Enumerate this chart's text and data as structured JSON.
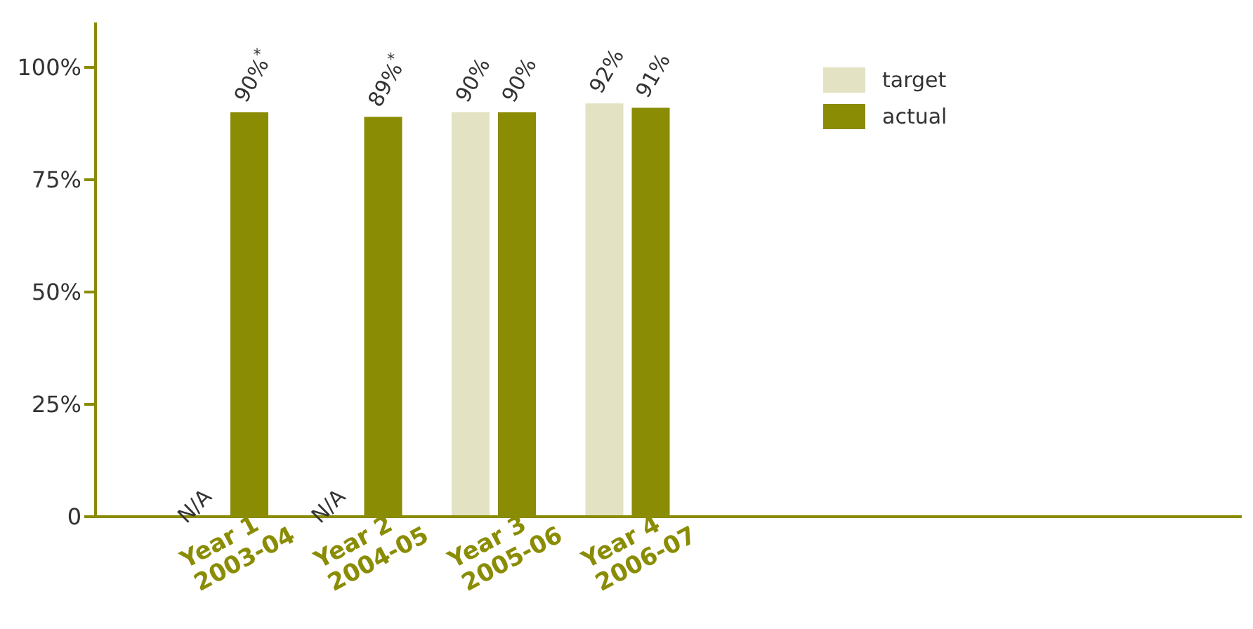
{
  "chart_data": {
    "type": "bar",
    "categories": [
      "Year 1\n2003-04",
      "Year 2\n2004-05",
      "Year 3\n2005-06",
      "Year 4\n2006-07"
    ],
    "series": [
      {
        "name": "target",
        "color": "#e3e2c3",
        "values": [
          null,
          null,
          90,
          92
        ],
        "value_labels": [
          "N/A",
          "N/A",
          "90%",
          "92%"
        ]
      },
      {
        "name": "actual",
        "color": "#8a8c03",
        "values": [
          90,
          89,
          90,
          91
        ],
        "value_labels": [
          "90%$^{*}$",
          "89%$^{*}$",
          "90%",
          "91%"
        ]
      }
    ],
    "ylim": [
      0,
      110
    ],
    "yticks": [
      0,
      {
        "value": 25,
        "label": "25%"
      },
      {
        "value": 50,
        "label": "50%"
      },
      {
        "value": 75,
        "label": "75%"
      },
      {
        "value": 100,
        "label": "100%"
      }
    ],
    "grid": false,
    "legend": "top right"
  }
}
